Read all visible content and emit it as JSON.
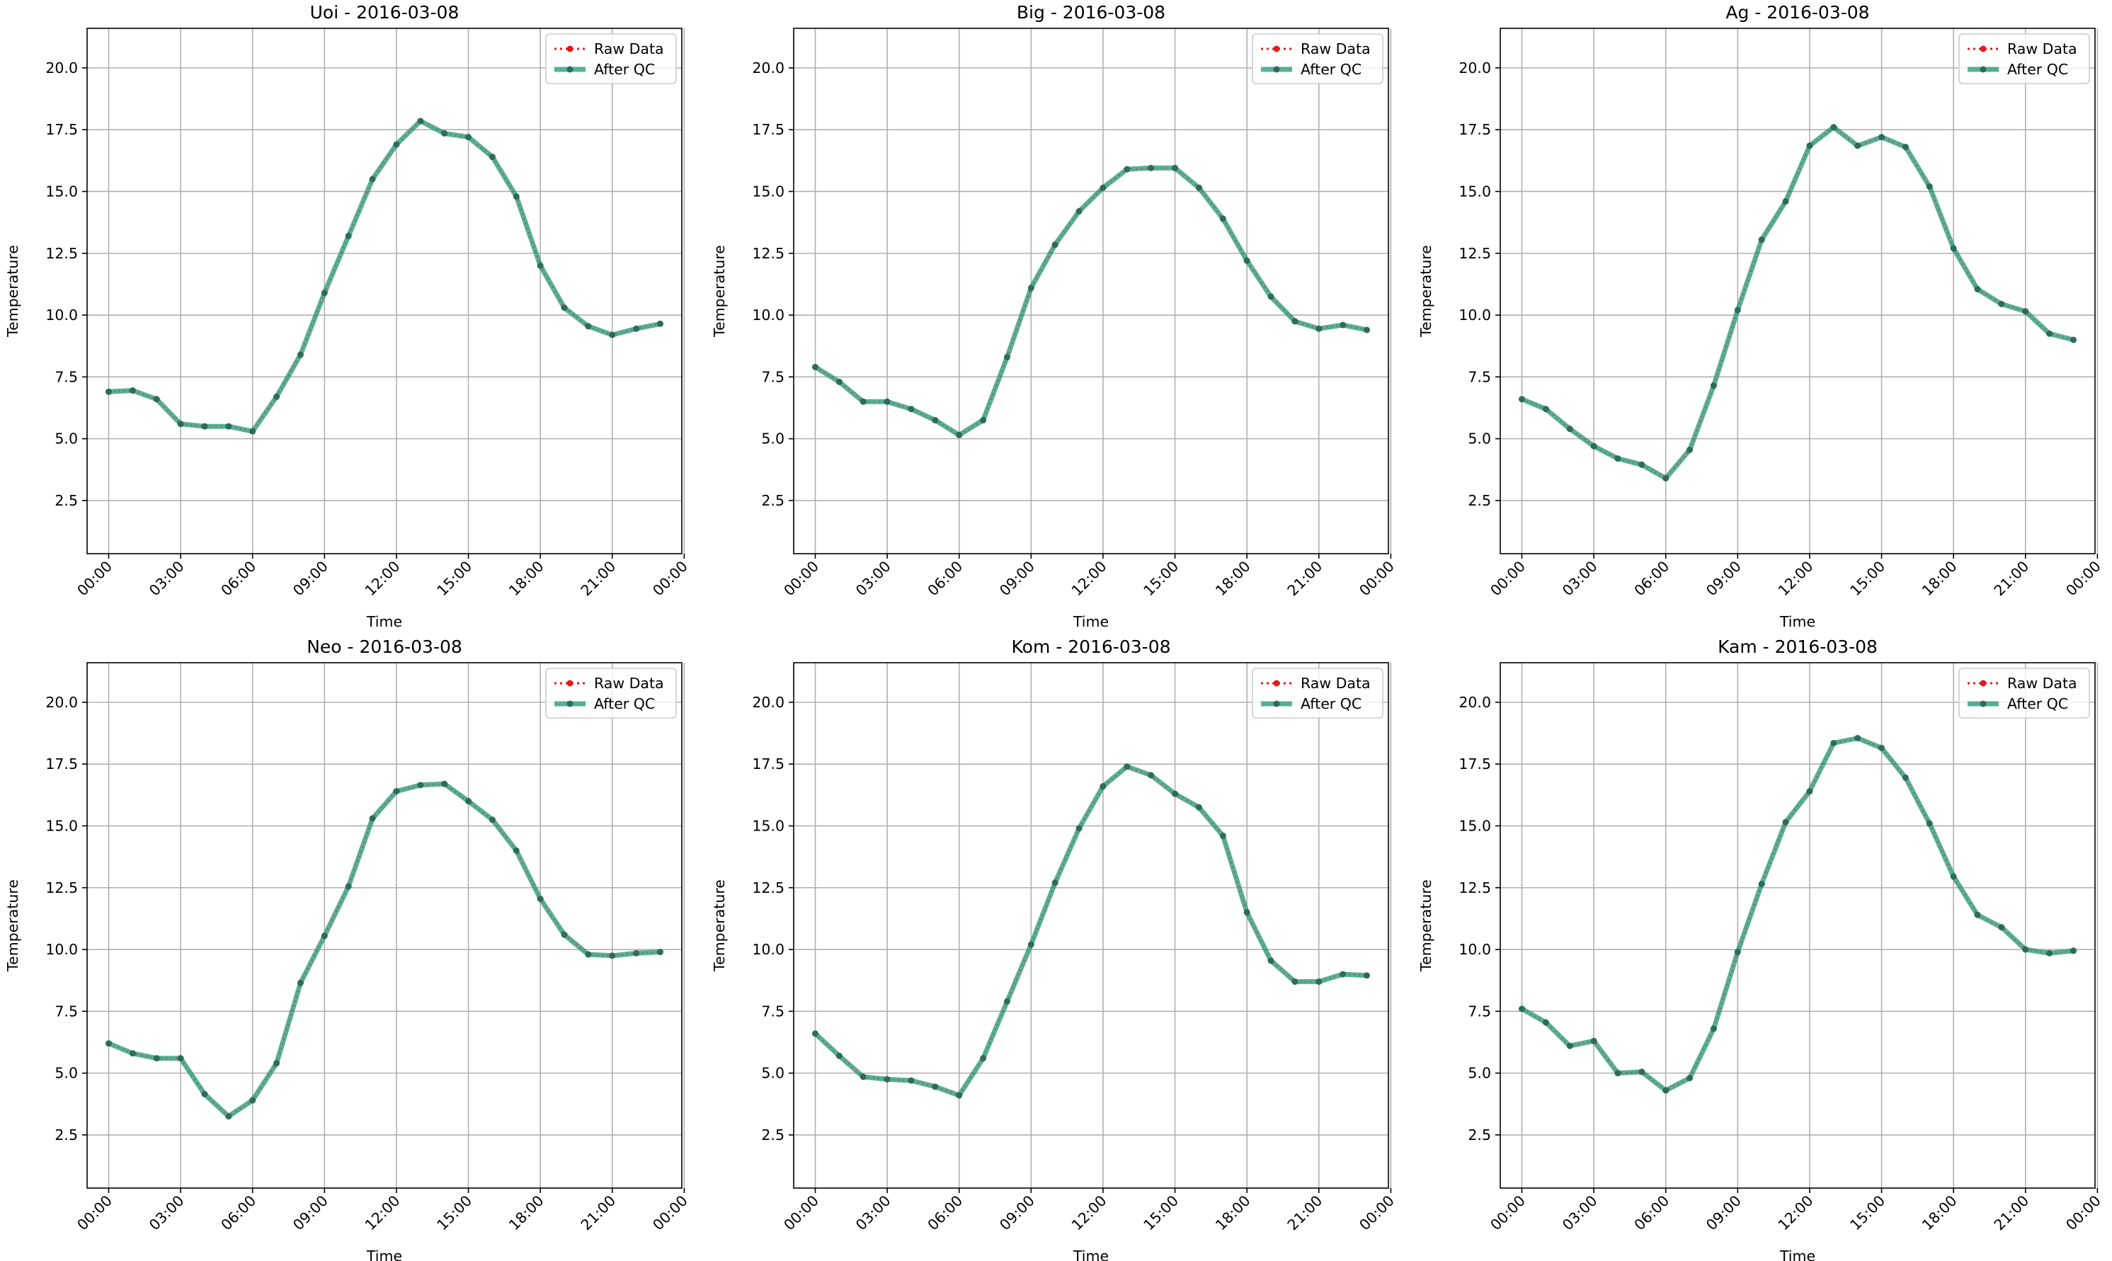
{
  "colors": {
    "raw": "#e41a1c",
    "qc_line": "#2a9d7a",
    "qc_marker": "#2e6b5c",
    "grid": "#b0b0b0"
  },
  "chart_data": [
    {
      "type": "line",
      "title": "Uoi - 2016-03-08",
      "xlabel": "Time",
      "ylabel": "Temperature",
      "ylim": [
        0.35,
        21.6
      ],
      "xlim": [
        -0.9,
        23.9
      ],
      "yticks": [
        "2.5",
        "5.0",
        "7.5",
        "10.0",
        "12.5",
        "15.0",
        "17.5",
        "20.0"
      ],
      "xticks": [
        "00:00",
        "03:00",
        "06:00",
        "09:00",
        "12:00",
        "15:00",
        "18:00",
        "21:00",
        "00:00"
      ],
      "x": [
        "00:00",
        "01:00",
        "02:00",
        "03:00",
        "04:00",
        "05:00",
        "06:00",
        "07:00",
        "08:00",
        "09:00",
        "10:00",
        "11:00",
        "12:00",
        "13:00",
        "14:00",
        "15:00",
        "16:00",
        "17:00",
        "18:00",
        "19:00",
        "20:00",
        "21:00",
        "22:00",
        "23:00"
      ],
      "grid": true,
      "legend": "top-right",
      "series": [
        {
          "name": "Raw Data",
          "values": [
            6.9,
            6.95,
            6.6,
            5.6,
            5.5,
            5.5,
            5.3,
            6.7,
            8.4,
            10.9,
            13.2,
            15.5,
            16.9,
            17.85,
            17.35,
            17.2,
            16.4,
            14.8,
            12.0,
            10.3,
            9.55,
            9.2,
            9.45,
            9.65
          ]
        },
        {
          "name": "After QC",
          "values": [
            6.9,
            6.95,
            6.6,
            5.6,
            5.5,
            5.5,
            5.3,
            6.7,
            8.4,
            10.9,
            13.2,
            15.5,
            16.9,
            17.85,
            17.35,
            17.2,
            16.4,
            14.8,
            12.0,
            10.3,
            9.55,
            9.2,
            9.45,
            9.65
          ]
        }
      ]
    },
    {
      "type": "line",
      "title": "Big - 2016-03-08",
      "xlabel": "Time",
      "ylabel": "Temperature",
      "ylim": [
        0.35,
        21.6
      ],
      "xlim": [
        -0.9,
        23.9
      ],
      "yticks": [
        "2.5",
        "5.0",
        "7.5",
        "10.0",
        "12.5",
        "15.0",
        "17.5",
        "20.0"
      ],
      "xticks": [
        "00:00",
        "03:00",
        "06:00",
        "09:00",
        "12:00",
        "15:00",
        "18:00",
        "21:00",
        "00:00"
      ],
      "x": [
        "00:00",
        "01:00",
        "02:00",
        "03:00",
        "04:00",
        "05:00",
        "06:00",
        "07:00",
        "08:00",
        "09:00",
        "10:00",
        "11:00",
        "12:00",
        "13:00",
        "14:00",
        "15:00",
        "16:00",
        "17:00",
        "18:00",
        "19:00",
        "20:00",
        "21:00",
        "22:00",
        "23:00"
      ],
      "grid": true,
      "legend": "top-right",
      "series": [
        {
          "name": "Raw Data",
          "values": [
            7.9,
            7.3,
            6.5,
            6.5,
            6.2,
            5.75,
            5.15,
            5.75,
            8.3,
            11.1,
            12.85,
            14.2,
            15.15,
            15.9,
            15.95,
            15.95,
            15.15,
            13.9,
            12.2,
            10.75,
            9.75,
            9.45,
            9.6,
            9.4
          ]
        },
        {
          "name": "After QC",
          "values": [
            7.9,
            7.3,
            6.5,
            6.5,
            6.2,
            5.75,
            5.15,
            5.75,
            8.3,
            11.1,
            12.85,
            14.2,
            15.15,
            15.9,
            15.95,
            15.95,
            15.15,
            13.9,
            12.2,
            10.75,
            9.75,
            9.45,
            9.6,
            9.4
          ]
        }
      ]
    },
    {
      "type": "line",
      "title": "Ag - 2016-03-08",
      "xlabel": "Time",
      "ylabel": "Temperature",
      "ylim": [
        0.35,
        21.6
      ],
      "xlim": [
        -0.9,
        23.9
      ],
      "yticks": [
        "2.5",
        "5.0",
        "7.5",
        "10.0",
        "12.5",
        "15.0",
        "17.5",
        "20.0"
      ],
      "xticks": [
        "00:00",
        "03:00",
        "06:00",
        "09:00",
        "12:00",
        "15:00",
        "18:00",
        "21:00",
        "00:00"
      ],
      "x": [
        "00:00",
        "01:00",
        "02:00",
        "03:00",
        "04:00",
        "05:00",
        "06:00",
        "07:00",
        "08:00",
        "09:00",
        "10:00",
        "11:00",
        "12:00",
        "13:00",
        "14:00",
        "15:00",
        "16:00",
        "17:00",
        "18:00",
        "19:00",
        "20:00",
        "21:00",
        "22:00",
        "23:00"
      ],
      "grid": true,
      "legend": "top-right",
      "series": [
        {
          "name": "Raw Data",
          "values": [
            6.6,
            6.2,
            5.4,
            4.7,
            4.2,
            3.95,
            3.4,
            4.55,
            7.15,
            10.2,
            13.05,
            14.6,
            16.85,
            17.6,
            16.85,
            17.2,
            16.8,
            15.2,
            12.7,
            11.05,
            10.45,
            10.15,
            9.25,
            9.0
          ]
        },
        {
          "name": "After QC",
          "values": [
            6.6,
            6.2,
            5.4,
            4.7,
            4.2,
            3.95,
            3.4,
            4.55,
            7.15,
            10.2,
            13.05,
            14.6,
            16.85,
            17.6,
            16.85,
            17.2,
            16.8,
            15.2,
            12.7,
            11.05,
            10.45,
            10.15,
            9.25,
            9.0
          ]
        }
      ]
    },
    {
      "type": "line",
      "title": "Neo - 2016-03-08",
      "xlabel": "Time",
      "ylabel": "Temperature",
      "ylim": [
        0.35,
        21.6
      ],
      "xlim": [
        -0.9,
        23.9
      ],
      "yticks": [
        "2.5",
        "5.0",
        "7.5",
        "10.0",
        "12.5",
        "15.0",
        "17.5",
        "20.0"
      ],
      "xticks": [
        "00:00",
        "03:00",
        "06:00",
        "09:00",
        "12:00",
        "15:00",
        "18:00",
        "21:00",
        "00:00"
      ],
      "x": [
        "00:00",
        "01:00",
        "02:00",
        "03:00",
        "04:00",
        "05:00",
        "06:00",
        "07:00",
        "08:00",
        "09:00",
        "10:00",
        "11:00",
        "12:00",
        "13:00",
        "14:00",
        "15:00",
        "16:00",
        "17:00",
        "18:00",
        "19:00",
        "20:00",
        "21:00",
        "22:00",
        "23:00"
      ],
      "grid": true,
      "legend": "top-right",
      "series": [
        {
          "name": "Raw Data",
          "values": [
            6.2,
            5.8,
            5.6,
            5.6,
            4.15,
            3.25,
            3.9,
            5.4,
            8.65,
            10.55,
            12.55,
            15.3,
            16.4,
            16.65,
            16.7,
            16.0,
            15.25,
            14.0,
            12.05,
            10.6,
            9.8,
            9.75,
            9.85,
            9.9
          ]
        },
        {
          "name": "After QC",
          "values": [
            6.2,
            5.8,
            5.6,
            5.6,
            4.15,
            3.25,
            3.9,
            5.4,
            8.65,
            10.55,
            12.55,
            15.3,
            16.4,
            16.65,
            16.7,
            16.0,
            15.25,
            14.0,
            12.05,
            10.6,
            9.8,
            9.75,
            9.85,
            9.9
          ]
        }
      ]
    },
    {
      "type": "line",
      "title": "Kom - 2016-03-08",
      "xlabel": "Time",
      "ylabel": "Temperature",
      "ylim": [
        0.35,
        21.6
      ],
      "xlim": [
        -0.9,
        23.9
      ],
      "yticks": [
        "2.5",
        "5.0",
        "7.5",
        "10.0",
        "12.5",
        "15.0",
        "17.5",
        "20.0"
      ],
      "xticks": [
        "00:00",
        "03:00",
        "06:00",
        "09:00",
        "12:00",
        "15:00",
        "18:00",
        "21:00",
        "00:00"
      ],
      "x": [
        "00:00",
        "01:00",
        "02:00",
        "03:00",
        "04:00",
        "05:00",
        "06:00",
        "07:00",
        "08:00",
        "09:00",
        "10:00",
        "11:00",
        "12:00",
        "13:00",
        "14:00",
        "15:00",
        "16:00",
        "17:00",
        "18:00",
        "19:00",
        "20:00",
        "21:00",
        "22:00",
        "23:00"
      ],
      "grid": true,
      "legend": "top-right",
      "series": [
        {
          "name": "Raw Data",
          "values": [
            6.6,
            5.7,
            4.85,
            4.75,
            4.7,
            4.45,
            4.1,
            5.6,
            7.9,
            10.2,
            12.7,
            14.9,
            16.6,
            17.4,
            17.05,
            16.3,
            15.75,
            14.6,
            11.5,
            9.55,
            8.7,
            8.7,
            9.0,
            8.95
          ]
        },
        {
          "name": "After QC",
          "values": [
            6.6,
            5.7,
            4.85,
            4.75,
            4.7,
            4.45,
            4.1,
            5.6,
            7.9,
            10.2,
            12.7,
            14.9,
            16.6,
            17.4,
            17.05,
            16.3,
            15.75,
            14.6,
            11.5,
            9.55,
            8.7,
            8.7,
            9.0,
            8.95
          ]
        }
      ]
    },
    {
      "type": "line",
      "title": "Kam - 2016-03-08",
      "xlabel": "Time",
      "ylabel": "Temperature",
      "ylim": [
        0.35,
        21.6
      ],
      "xlim": [
        -0.9,
        23.9
      ],
      "yticks": [
        "2.5",
        "5.0",
        "7.5",
        "10.0",
        "12.5",
        "15.0",
        "17.5",
        "20.0"
      ],
      "xticks": [
        "00:00",
        "03:00",
        "06:00",
        "09:00",
        "12:00",
        "15:00",
        "18:00",
        "21:00",
        "00:00"
      ],
      "x": [
        "00:00",
        "01:00",
        "02:00",
        "03:00",
        "04:00",
        "05:00",
        "06:00",
        "07:00",
        "08:00",
        "09:00",
        "10:00",
        "11:00",
        "12:00",
        "13:00",
        "14:00",
        "15:00",
        "16:00",
        "17:00",
        "18:00",
        "19:00",
        "20:00",
        "21:00",
        "22:00",
        "23:00"
      ],
      "grid": true,
      "legend": "top-right",
      "series": [
        {
          "name": "Raw Data",
          "values": [
            7.6,
            7.05,
            6.1,
            6.3,
            5.0,
            5.05,
            4.3,
            4.8,
            6.8,
            9.9,
            12.65,
            15.15,
            16.4,
            18.35,
            18.55,
            18.15,
            16.95,
            15.1,
            12.95,
            11.4,
            10.9,
            10.0,
            9.85,
            9.95
          ]
        },
        {
          "name": "After QC",
          "values": [
            7.6,
            7.05,
            6.1,
            6.3,
            5.0,
            5.05,
            4.3,
            4.8,
            6.8,
            9.9,
            12.65,
            15.15,
            16.4,
            18.35,
            18.55,
            18.15,
            16.95,
            15.1,
            12.95,
            11.4,
            10.9,
            10.0,
            9.85,
            9.95
          ]
        }
      ]
    }
  ]
}
